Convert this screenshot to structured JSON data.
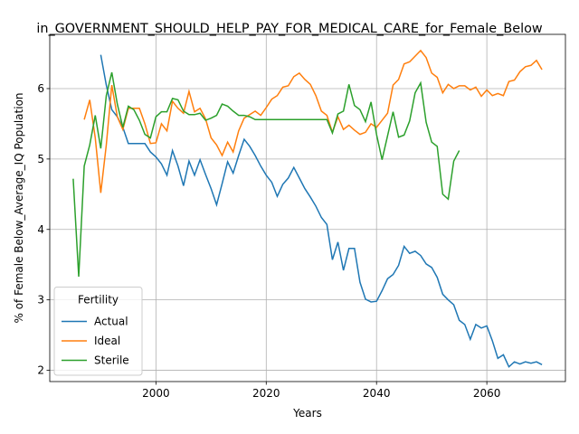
{
  "chart_data": {
    "type": "line",
    "title": "in_GOVERNMENT_SHOULD_HELP_PAY_FOR_MEDICAL_CARE_for_Female_Below",
    "xlabel": "Years",
    "ylabel": "% of Female Below_Average_IQ Population",
    "legend_title": "Fertility",
    "legend": "lower left",
    "grid": true,
    "xlim": [
      1980.75,
      2074.25
    ],
    "ylim": [
      1.84,
      6.77
    ],
    "xticks": [
      2000,
      2020,
      2040,
      2060
    ],
    "yticks": [
      2,
      3,
      4,
      5,
      6
    ],
    "x": [
      1985,
      1986,
      1987,
      1988,
      1989,
      1990,
      1991,
      1992,
      1993,
      1994,
      1995,
      1996,
      1997,
      1998,
      1999,
      2000,
      2001,
      2002,
      2003,
      2004,
      2005,
      2006,
      2007,
      2008,
      2009,
      2010,
      2011,
      2012,
      2013,
      2014,
      2015,
      2016,
      2017,
      2018,
      2019,
      2020,
      2021,
      2022,
      2023,
      2024,
      2025,
      2026,
      2027,
      2028,
      2029,
      2030,
      2031,
      2032,
      2033,
      2034,
      2035,
      2036,
      2037,
      2038,
      2039,
      2040,
      2041,
      2042,
      2043,
      2044,
      2045,
      2046,
      2047,
      2048,
      2049,
      2050,
      2051,
      2052,
      2053,
      2054,
      2055,
      2056,
      2057,
      2058,
      2059,
      2060,
      2061,
      2062,
      2063,
      2064,
      2065,
      2066,
      2067,
      2068,
      2069,
      2070
    ],
    "series": [
      {
        "name": "Actual",
        "color": "#1f77b4",
        "values": [
          null,
          null,
          null,
          null,
          null,
          6.48,
          6.05,
          5.7,
          5.6,
          5.45,
          5.22,
          5.22,
          5.22,
          5.22,
          5.1,
          5.03,
          4.93,
          4.77,
          5.12,
          4.9,
          4.62,
          4.97,
          4.77,
          4.99,
          4.78,
          4.58,
          4.35,
          4.65,
          4.96,
          4.8,
          5.05,
          5.28,
          5.18,
          5.05,
          4.9,
          4.77,
          4.67,
          4.47,
          4.64,
          4.73,
          4.88,
          4.73,
          4.58,
          4.46,
          4.33,
          4.17,
          4.07,
          3.57,
          3.82,
          3.42,
          3.73,
          3.73,
          3.25,
          3.01,
          2.97,
          2.98,
          3.13,
          3.3,
          3.36,
          3.49,
          3.76,
          3.66,
          3.69,
          3.63,
          3.51,
          3.46,
          3.32,
          3.08,
          3.0,
          2.93,
          2.71,
          2.65,
          2.44,
          2.65,
          2.6,
          2.63,
          2.42,
          2.17,
          2.22,
          2.05,
          2.12,
          2.09,
          2.12,
          2.1,
          2.12,
          2.08
        ]
      },
      {
        "name": "Ideal",
        "color": "#ff7f0e",
        "values": [
          null,
          null,
          5.56,
          5.84,
          5.3,
          4.52,
          5.2,
          6.05,
          5.6,
          5.42,
          5.72,
          5.72,
          5.72,
          5.5,
          5.22,
          5.23,
          5.5,
          5.4,
          5.82,
          5.72,
          5.65,
          5.96,
          5.67,
          5.72,
          5.57,
          5.3,
          5.2,
          5.05,
          5.24,
          5.1,
          5.4,
          5.58,
          5.63,
          5.68,
          5.62,
          5.73,
          5.85,
          5.9,
          6.02,
          6.04,
          6.17,
          6.22,
          6.13,
          6.06,
          5.9,
          5.68,
          5.62,
          5.38,
          5.6,
          5.42,
          5.48,
          5.41,
          5.35,
          5.38,
          5.5,
          5.45,
          5.55,
          5.65,
          6.05,
          6.13,
          6.35,
          6.38,
          6.46,
          6.54,
          6.44,
          6.22,
          6.16,
          5.94,
          6.06,
          6.0,
          6.04,
          6.04,
          5.98,
          6.02,
          5.89,
          5.98,
          5.9,
          5.93,
          5.9,
          6.1,
          6.12,
          6.24,
          6.31,
          6.33,
          6.4,
          6.27
        ]
      },
      {
        "name": "Sterile",
        "color": "#2ca02c",
        "values": [
          4.72,
          3.33,
          4.9,
          5.2,
          5.62,
          5.15,
          5.9,
          6.23,
          5.78,
          5.45,
          5.75,
          5.7,
          5.55,
          5.35,
          5.3,
          5.6,
          5.67,
          5.67,
          5.86,
          5.84,
          5.68,
          5.63,
          5.63,
          5.65,
          5.55,
          5.58,
          5.62,
          5.78,
          5.75,
          5.68,
          5.62,
          5.62,
          5.6,
          5.56,
          5.56,
          5.56,
          5.56,
          5.56,
          5.56,
          5.56,
          5.56,
          5.56,
          5.56,
          5.56,
          5.56,
          5.56,
          5.56,
          5.37,
          5.64,
          5.68,
          6.06,
          5.76,
          5.7,
          5.53,
          5.81,
          5.35,
          4.99,
          5.33,
          5.67,
          5.31,
          5.34,
          5.54,
          5.94,
          6.08,
          5.52,
          5.24,
          5.18,
          4.5,
          4.43,
          4.97,
          5.12,
          null,
          null,
          null,
          null,
          null,
          null,
          null,
          null,
          null,
          null,
          null,
          null,
          null,
          null,
          null
        ]
      }
    ]
  }
}
